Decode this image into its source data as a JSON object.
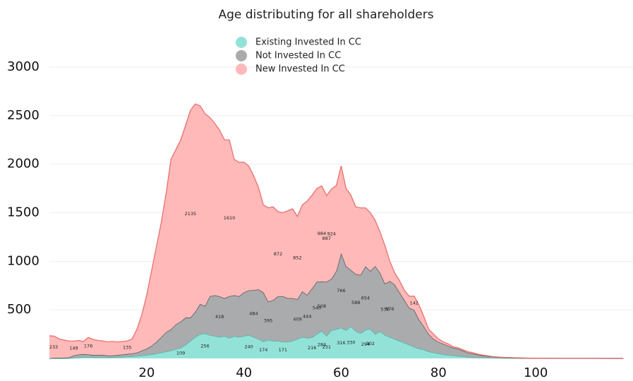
{
  "chart_data": {
    "type": "stacked_area",
    "title": "Age distributing for all shareholders",
    "x": [
      0,
      1,
      2,
      3,
      4,
      5,
      6,
      7,
      8,
      9,
      10,
      11,
      12,
      13,
      14,
      15,
      16,
      17,
      18,
      19,
      20,
      21,
      22,
      23,
      24,
      25,
      26,
      27,
      28,
      29,
      30,
      31,
      32,
      33,
      34,
      35,
      36,
      37,
      38,
      39,
      40,
      41,
      42,
      43,
      44,
      45,
      46,
      47,
      48,
      49,
      50,
      51,
      52,
      53,
      54,
      55,
      56,
      57,
      58,
      59,
      60,
      61,
      62,
      63,
      64,
      65,
      66,
      67,
      68,
      69,
      70,
      71,
      72,
      73,
      74,
      75,
      76,
      77,
      78,
      79,
      80,
      81,
      82,
      83,
      84,
      85,
      86,
      87,
      88,
      89,
      90,
      91,
      92,
      93,
      94,
      95,
      96,
      97,
      98,
      99,
      100,
      105,
      110,
      118
    ],
    "series": [
      {
        "name": "Existing Invested In CC",
        "color": "#93e2d8",
        "line": "#3fb8ab",
        "values": [
          0,
          0,
          0,
          0,
          0,
          5,
          10,
          15,
          15,
          12,
          10,
          10,
          10,
          12,
          12,
          15,
          18,
          20,
          25,
          30,
          35,
          40,
          50,
          60,
          70,
          80,
          95,
          109,
          140,
          180,
          220,
          250,
          256,
          240,
          230,
          220,
          230,
          210,
          230,
          220,
          230,
          240,
          220,
          200,
          174,
          190,
          180,
          180,
          171,
          170,
          180,
          200,
          220,
          210,
          216,
          250,
          284,
          231,
          290,
          300,
          316,
          290,
          330,
          280,
          260,
          294,
          302,
          250,
          280,
          240,
          220,
          200,
          180,
          160,
          140,
          120,
          100,
          90,
          70,
          60,
          50,
          40,
          35,
          30,
          25,
          20,
          15,
          12,
          10,
          8,
          6,
          5,
          4,
          3,
          2,
          2,
          1,
          1,
          1,
          1,
          1,
          0,
          0,
          0
        ],
        "value_labels": [
          null,
          null,
          null,
          null,
          null,
          null,
          null,
          null,
          null,
          null,
          null,
          null,
          null,
          null,
          null,
          null,
          null,
          null,
          null,
          null,
          null,
          null,
          null,
          null,
          null,
          null,
          null,
          "109",
          null,
          null,
          null,
          null,
          "256",
          null,
          null,
          null,
          null,
          null,
          null,
          null,
          null,
          "240",
          null,
          null,
          "174",
          null,
          null,
          null,
          "171",
          null,
          null,
          null,
          null,
          null,
          "216",
          null,
          "284",
          "231",
          null,
          null,
          "316",
          null,
          "330",
          null,
          null,
          "294",
          "302",
          null,
          null,
          null,
          null,
          null,
          null,
          null,
          null,
          null,
          null,
          null,
          null,
          null,
          null,
          null,
          null,
          null,
          null,
          null,
          null,
          null,
          null,
          null,
          null,
          null,
          null,
          null,
          null,
          null,
          null,
          null,
          null,
          null,
          null,
          null,
          null,
          null
        ]
      },
      {
        "name": "Not Invested In CC",
        "color": "#a9abad",
        "line": "#4a4a4a",
        "values": [
          0,
          5,
          5,
          8,
          10,
          25,
          30,
          30,
          25,
          23,
          25,
          25,
          20,
          18,
          23,
          25,
          27,
          30,
          35,
          50,
          65,
          90,
          120,
          160,
          200,
          220,
          255,
          271,
          280,
          240,
          260,
          310,
          284,
          400,
          420,
          418,
          390,
          430,
          420,
          420,
          450,
          460,
          484,
          510,
          506,
          395,
          420,
          460,
          469,
          450,
          440,
          409,
          470,
          444,
          504,
          540,
          508,
          559,
          530,
          600,
          766,
          660,
          580,
          588,
          600,
          654,
          598,
          700,
          600,
          530,
          576,
          560,
          500,
          440,
          380,
          380,
          300,
          240,
          180,
          140,
          120,
          110,
          95,
          80,
          75,
          60,
          45,
          38,
          30,
          22,
          19,
          13,
          10,
          8,
          7,
          5,
          4,
          3,
          2,
          1,
          1,
          1,
          1,
          0
        ],
        "value_labels": [
          null,
          null,
          null,
          null,
          null,
          null,
          null,
          null,
          null,
          null,
          null,
          null,
          null,
          null,
          null,
          null,
          null,
          null,
          null,
          null,
          null,
          null,
          null,
          null,
          null,
          null,
          null,
          null,
          null,
          null,
          null,
          null,
          null,
          null,
          null,
          "418",
          null,
          null,
          null,
          null,
          null,
          null,
          "484",
          null,
          null,
          "395",
          null,
          null,
          null,
          null,
          null,
          "409",
          null,
          "444",
          null,
          "540",
          "508",
          null,
          null,
          null,
          "766",
          null,
          null,
          "588",
          null,
          "654",
          null,
          null,
          null,
          "530",
          "576",
          null,
          null,
          null,
          null,
          null,
          null,
          null,
          null,
          null,
          null,
          null,
          null,
          null,
          null,
          null,
          null,
          null,
          null,
          null,
          null,
          null,
          null,
          null,
          null,
          null,
          null,
          null,
          null,
          null,
          null,
          null,
          null,
          null
        ]
      },
      {
        "name": "New Invested In CC",
        "color": "#ffb9b9",
        "line": "#e8706e",
        "values": [
          233,
          225,
          195,
          182,
          170,
          149,
          145,
          130,
          176,
          160,
          150,
          145,
          140,
          145,
          135,
          135,
          135,
          150,
          240,
          370,
          550,
          770,
          980,
          1180,
          1430,
          1750,
          1800,
          1870,
          1980,
          2135,
          2140,
          2040,
          1980,
          1840,
          1770,
          1712,
          1630,
          1610,
          1400,
          1380,
          1340,
          1280,
          1176,
          1050,
          900,
          965,
          960,
          872,
          860,
          900,
          920,
          852,
          890,
          966,
          960,
          960,
          984,
          887,
          924,
          880,
          900,
          800,
          770,
          692,
          690,
          602,
          600,
          470,
          420,
          390,
          204,
          120,
          120,
          100,
          120,
          142,
          150,
          100,
          50,
          50,
          30,
          20,
          20,
          10,
          10,
          10,
          10,
          10,
          5,
          5,
          3,
          2,
          1,
          1,
          1,
          1,
          1,
          1,
          1,
          1,
          1,
          0,
          0,
          0
        ],
        "value_labels": [
          "233",
          null,
          null,
          null,
          null,
          "149",
          null,
          null,
          "176",
          null,
          null,
          null,
          null,
          null,
          null,
          null,
          "135",
          null,
          null,
          null,
          null,
          null,
          null,
          null,
          null,
          null,
          null,
          null,
          null,
          "2135",
          null,
          null,
          null,
          null,
          null,
          null,
          null,
          "1610",
          null,
          null,
          null,
          null,
          null,
          null,
          null,
          null,
          null,
          "872",
          null,
          null,
          null,
          "852",
          null,
          null,
          null,
          null,
          "984",
          "887",
          "924",
          null,
          null,
          null,
          null,
          null,
          null,
          null,
          null,
          null,
          null,
          null,
          null,
          null,
          null,
          null,
          null,
          "142",
          null,
          null,
          null,
          null,
          null,
          null,
          null,
          null,
          null,
          null,
          null,
          null,
          null,
          null,
          null,
          null,
          null,
          null,
          null,
          null,
          null,
          null,
          null,
          null,
          null,
          null,
          null,
          null
        ]
      }
    ],
    "xlim": [
      0,
      120
    ],
    "xticks": [
      20,
      40,
      60,
      80,
      100
    ],
    "ylim": [
      0,
      3000
    ],
    "yticks": [
      500,
      1000,
      1500,
      2000,
      2500,
      3000
    ],
    "grid": true,
    "legend": "top"
  }
}
